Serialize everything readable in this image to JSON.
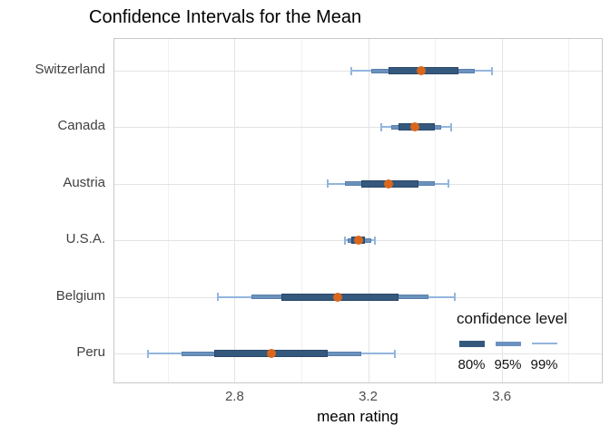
{
  "title": "Confidence Intervals for the Mean",
  "chart_data": {
    "type": "errorbar",
    "orientation": "horizontal",
    "title": "Confidence Intervals for the Mean",
    "xlabel": "mean rating",
    "ylabel": "",
    "categories": [
      "Switzerland",
      "Canada",
      "Austria",
      "U.S.A.",
      "Belgium",
      "Peru"
    ],
    "series": [
      {
        "name": "Switzerland",
        "mean": 3.36,
        "ci80": [
          3.26,
          3.47
        ],
        "ci95": [
          3.21,
          3.52
        ],
        "ci99": [
          3.15,
          3.57
        ]
      },
      {
        "name": "Canada",
        "mean": 3.34,
        "ci80": [
          3.29,
          3.4
        ],
        "ci95": [
          3.27,
          3.42
        ],
        "ci99": [
          3.24,
          3.45
        ]
      },
      {
        "name": "Austria",
        "mean": 3.26,
        "ci80": [
          3.18,
          3.35
        ],
        "ci95": [
          3.13,
          3.4
        ],
        "ci99": [
          3.08,
          3.44
        ]
      },
      {
        "name": "U.S.A.",
        "mean": 3.17,
        "ci80": [
          3.15,
          3.19
        ],
        "ci95": [
          3.14,
          3.21
        ],
        "ci99": [
          3.13,
          3.22
        ]
      },
      {
        "name": "Belgium",
        "mean": 3.11,
        "ci80": [
          2.94,
          3.29
        ],
        "ci95": [
          2.85,
          3.38
        ],
        "ci99": [
          2.75,
          3.46
        ]
      },
      {
        "name": "Peru",
        "mean": 2.91,
        "ci80": [
          2.74,
          3.08
        ],
        "ci95": [
          2.64,
          3.18
        ],
        "ci99": [
          2.54,
          3.28
        ]
      }
    ],
    "xlim": [
      2.44,
      3.9
    ],
    "x_major_ticks": [
      2.8,
      3.2,
      3.6
    ],
    "x_tick_labels": [
      "2.8",
      "3.2",
      "3.6"
    ],
    "x_minor_ticks": [
      2.6,
      3.0,
      3.4,
      3.8
    ],
    "grid": true,
    "legend": {
      "title": "confidence level",
      "position": "inside-bottom-right",
      "items": [
        {
          "label": "80%",
          "level": "ci80"
        },
        {
          "label": "95%",
          "level": "ci95"
        },
        {
          "label": "99%",
          "level": "ci99"
        }
      ]
    },
    "colors": {
      "ci80": "#35587D",
      "ci95": "#6B92BE",
      "ci99": "#93B5DF",
      "mean_point": "#D9671C"
    }
  }
}
